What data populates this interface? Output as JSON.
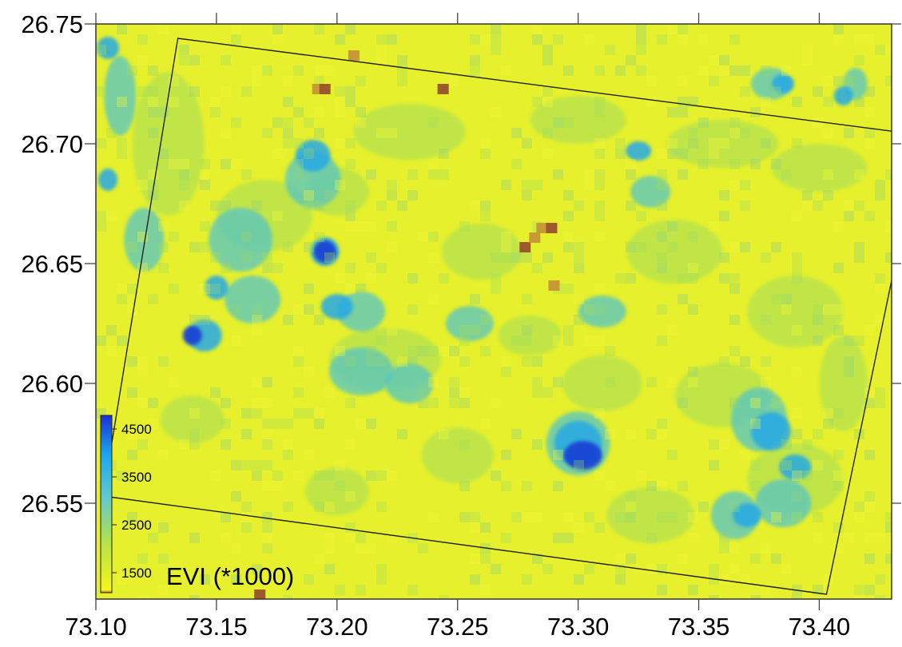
{
  "map": {
    "x_ticks": [
      "73.10",
      "73.15",
      "73.20",
      "73.25",
      "73.30",
      "73.35",
      "73.40"
    ],
    "y_ticks": [
      "26.75",
      "26.70",
      "26.65",
      "26.60",
      "26.55"
    ],
    "x_range": [
      73.1,
      73.43
    ],
    "y_range": [
      26.51,
      26.75
    ],
    "colorbar": {
      "title": "EVI (*1000)",
      "labels": [
        "4500",
        "3500",
        "2500",
        "1500"
      ],
      "colors": [
        "#1a2fd6",
        "#1aa6ee",
        "#5ec8d0",
        "#b6e24a",
        "#f6f61a",
        "#b06a2a"
      ]
    },
    "boundary_polygon": [
      [
        73.134,
        26.744
      ],
      [
        73.432,
        26.705
      ],
      [
        73.4325,
        26.655
      ],
      [
        73.403,
        26.512
      ],
      [
        73.103,
        26.553
      ]
    ],
    "colors": {
      "background": "#e6f02c",
      "green": "#a2dc5c",
      "teal": "#54c4c6",
      "cyan": "#27a8e6",
      "blue": "#1a3ed4",
      "brown": "#9a5a2c",
      "tan": "#c89a36"
    }
  }
}
